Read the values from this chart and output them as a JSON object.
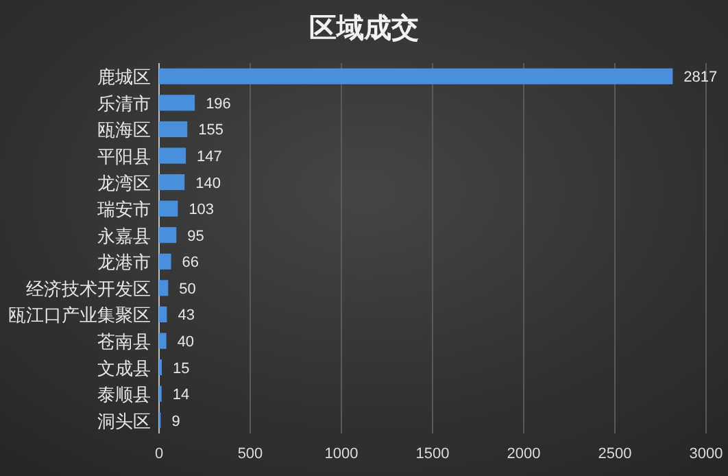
{
  "chart_data": {
    "type": "bar",
    "title": "区域成交",
    "orientation": "horizontal",
    "categories": [
      "鹿城区",
      "乐清市",
      "瓯海区",
      "平阳县",
      "龙湾区",
      "瑞安市",
      "永嘉县",
      "龙港市",
      "经济技术开发区",
      "瓯江口产业集聚区",
      "苍南县",
      "文成县",
      "泰顺县",
      "洞头区"
    ],
    "values": [
      2817,
      196,
      155,
      147,
      140,
      103,
      95,
      66,
      50,
      43,
      40,
      15,
      14,
      9
    ],
    "color": "#4a8fdc",
    "xlim": [
      0,
      3000
    ],
    "xticks": [
      0,
      500,
      1000,
      1500,
      2000,
      2500,
      3000
    ],
    "grid": "x",
    "data_labels": true
  }
}
